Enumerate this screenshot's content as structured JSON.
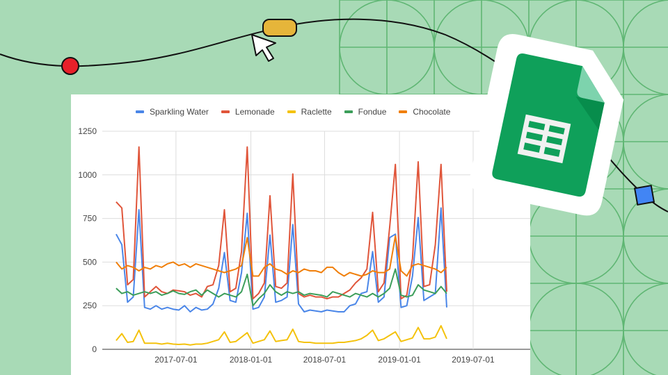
{
  "chart_data": {
    "type": "line",
    "title": "",
    "xlabel": "",
    "ylabel": "",
    "ylim": [
      0,
      1250
    ],
    "yticks": [
      "0",
      "250",
      "500",
      "750",
      "1000",
      "1250"
    ],
    "ytick_values": [
      0,
      250,
      500,
      750,
      1000,
      1250
    ],
    "xticks": [
      "2017-07-01",
      "2018-01-01",
      "2018-07-01",
      "2019-01-01",
      "2019-07-01"
    ],
    "x_start": "2017-02-04",
    "x_step_days": 14,
    "x_range": [
      "2017-01-01",
      "2019-10-15"
    ],
    "grid": true,
    "legend_position": "top",
    "series": [
      {
        "name": "Sparkling Water",
        "color": "#4a86e8",
        "values": [
          660,
          600,
          270,
          300,
          800,
          240,
          230,
          250,
          230,
          240,
          230,
          225,
          250,
          215,
          240,
          225,
          230,
          260,
          350,
          555,
          280,
          270,
          440,
          780,
          230,
          240,
          300,
          655,
          270,
          280,
          300,
          715,
          260,
          215,
          225,
          220,
          215,
          225,
          220,
          215,
          215,
          250,
          260,
          320,
          330,
          560,
          270,
          300,
          640,
          660,
          240,
          250,
          420,
          755,
          280,
          300,
          320,
          810,
          240
        ]
      },
      {
        "name": "Lemonade",
        "color": "#e0553a",
        "values": [
          845,
          810,
          370,
          400,
          1160,
          300,
          330,
          360,
          330,
          320,
          340,
          335,
          330,
          310,
          320,
          300,
          360,
          370,
          480,
          800,
          330,
          350,
          560,
          1160,
          290,
          320,
          380,
          880,
          360,
          350,
          380,
          1005,
          320,
          300,
          310,
          300,
          300,
          290,
          300,
          300,
          320,
          340,
          380,
          410,
          460,
          785,
          330,
          380,
          700,
          1060,
          290,
          310,
          520,
          1075,
          360,
          370,
          600,
          1060,
          330
        ]
      },
      {
        "name": "Raclette",
        "color": "#f4c20d",
        "values": [
          50,
          90,
          40,
          45,
          110,
          35,
          35,
          35,
          30,
          35,
          30,
          28,
          30,
          25,
          30,
          30,
          35,
          45,
          55,
          100,
          40,
          45,
          70,
          95,
          35,
          45,
          55,
          105,
          45,
          50,
          55,
          115,
          45,
          40,
          40,
          35,
          35,
          35,
          35,
          40,
          40,
          45,
          50,
          60,
          80,
          110,
          50,
          60,
          80,
          100,
          45,
          55,
          65,
          125,
          60,
          60,
          70,
          135,
          60
        ]
      },
      {
        "name": "Fondue",
        "color": "#3c9e5a",
        "values": [
          350,
          320,
          330,
          310,
          320,
          330,
          320,
          330,
          310,
          320,
          335,
          320,
          315,
          330,
          340,
          310,
          340,
          320,
          300,
          320,
          310,
          300,
          330,
          430,
          250,
          290,
          320,
          370,
          330,
          310,
          330,
          320,
          330,
          310,
          320,
          315,
          310,
          300,
          330,
          320,
          310,
          300,
          320,
          310,
          300,
          320,
          300,
          320,
          350,
          460,
          310,
          300,
          310,
          370,
          340,
          330,
          320,
          360,
          320
        ]
      },
      {
        "name": "Chocolate",
        "color": "#f07f0a",
        "values": [
          500,
          460,
          480,
          470,
          450,
          470,
          460,
          480,
          470,
          490,
          500,
          480,
          490,
          470,
          490,
          480,
          470,
          460,
          450,
          440,
          450,
          460,
          480,
          640,
          420,
          420,
          470,
          490,
          460,
          450,
          430,
          450,
          440,
          460,
          450,
          450,
          440,
          470,
          470,
          440,
          420,
          440,
          430,
          420,
          430,
          450,
          440,
          440,
          460,
          650,
          450,
          420,
          480,
          490,
          480,
          470,
          460,
          440,
          470
        ]
      }
    ]
  },
  "colors": {
    "background": "#a8dab6",
    "pattern": "#5fb673",
    "sheets_green": "#0fa05a",
    "marker_red": "#e8202a",
    "marker_yellow": "#e6b53a",
    "marker_blue": "#4285f4"
  },
  "decor": {
    "icon": "google-sheets-icon",
    "cursor": "cursor-arrow-icon"
  }
}
